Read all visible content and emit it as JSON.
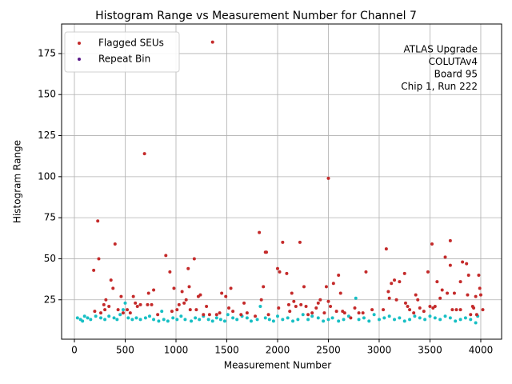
{
  "chart_data": {
    "type": "scatter",
    "title": "Histogram Range vs Measurement Number for Channel 7",
    "xlabel": "Measurement Number",
    "ylabel": "Histogram Range",
    "annotations": [
      "ATLAS Upgrade",
      "COLUTAv4",
      "Board 95",
      "Chip 1, Run 222"
    ],
    "xlim": [
      -126,
      4205
    ],
    "ylim": [
      1,
      193
    ],
    "xticks": [
      0,
      500,
      1000,
      1500,
      2000,
      2500,
      3000,
      3500,
      4000
    ],
    "yticks": [
      25,
      50,
      75,
      100,
      125,
      150,
      175
    ],
    "grid": true,
    "legend": "upper left",
    "series": [
      {
        "color": "#17bfc4",
        "x": [
          30,
          60,
          80,
          100,
          130,
          160,
          210,
          260,
          300,
          340,
          390,
          420,
          450,
          480,
          500,
          530,
          570,
          610,
          650,
          700,
          740,
          780,
          830,
          860,
          880,
          920,
          970,
          1010,
          1050,
          1090,
          1150,
          1190,
          1230,
          1270,
          1320,
          1360,
          1400,
          1440,
          1480,
          1510,
          1560,
          1600,
          1650,
          1700,
          1740,
          1800,
          1830,
          1880,
          1920,
          1960,
          2000,
          2050,
          2100,
          2150,
          2200,
          2250,
          2300,
          2340,
          2400,
          2450,
          2500,
          2540,
          2600,
          2650,
          2700,
          2770,
          2800,
          2850,
          2900,
          2950,
          3000,
          3050,
          3100,
          3150,
          3200,
          3250,
          3300,
          3350,
          3400,
          3450,
          3500,
          3550,
          3600,
          3650,
          3700,
          3750,
          3800,
          3850,
          3900,
          3950,
          3970
        ],
        "values": [
          14,
          13,
          12,
          15,
          14,
          13,
          15,
          14,
          13,
          15,
          14,
          13,
          16,
          19,
          23,
          14,
          13,
          14,
          13,
          14,
          15,
          13,
          12,
          18,
          13,
          12,
          14,
          13,
          15,
          13,
          12,
          14,
          13,
          15,
          13,
          12,
          14,
          13,
          12,
          16,
          14,
          13,
          15,
          14,
          12,
          13,
          21,
          14,
          13,
          12,
          15,
          13,
          14,
          12,
          13,
          16,
          13,
          15,
          14,
          12,
          13,
          14,
          12,
          13,
          15,
          26,
          13,
          14,
          12,
          16,
          13,
          14,
          15,
          13,
          14,
          12,
          13,
          15,
          14,
          13,
          15,
          14,
          13,
          15,
          14,
          12,
          13,
          14,
          13,
          11,
          15
        ]
      },
      {
        "name": "Flagged SEUs",
        "color": "#c42a2a",
        "x": [
          190,
          200,
          230,
          240,
          260,
          290,
          300,
          310,
          340,
          360,
          380,
          400,
          430,
          460,
          480,
          520,
          550,
          580,
          600,
          620,
          650,
          690,
          720,
          730,
          760,
          780,
          820,
          900,
          940,
          960,
          980,
          1010,
          1030,
          1060,
          1080,
          1100,
          1120,
          1130,
          1140,
          1180,
          1200,
          1220,
          1240,
          1270,
          1300,
          1330,
          1360,
          1400,
          1430,
          1450,
          1490,
          1520,
          1540,
          1560,
          1640,
          1670,
          1700,
          1780,
          1820,
          1840,
          1860,
          1880,
          1890,
          1910,
          2000,
          2010,
          2020,
          2050,
          2090,
          2110,
          2120,
          2140,
          2160,
          2180,
          2220,
          2230,
          2260,
          2280,
          2300,
          2340,
          2380,
          2400,
          2420,
          2460,
          2480,
          2500,
          2500,
          2520,
          2550,
          2580,
          2600,
          2620,
          2640,
          2660,
          2720,
          2760,
          2800,
          2840,
          2870,
          2930,
          3040,
          3070,
          3090,
          3100,
          3120,
          3150,
          3170,
          3200,
          3250,
          3260,
          3280,
          3300,
          3340,
          3360,
          3380,
          3400,
          3440,
          3480,
          3500,
          3520,
          3530,
          3550,
          3570,
          3600,
          3620,
          3650,
          3670,
          3700,
          3700,
          3720,
          3740,
          3760,
          3800,
          3800,
          3820,
          3860,
          3870,
          3880,
          3900,
          3920,
          3930,
          3950,
          3960,
          3980,
          3990,
          4000,
          4020
        ],
        "values": [
          43,
          18,
          73,
          50,
          17,
          22,
          19,
          25,
          21,
          37,
          32,
          59,
          19,
          27,
          17,
          19,
          17,
          27,
          23,
          21,
          22,
          114,
          22,
          29,
          22,
          31,
          16,
          52,
          42,
          18,
          32,
          19,
          22,
          30,
          23,
          25,
          44,
          33,
          19,
          50,
          19,
          27,
          28,
          16,
          21,
          16,
          182,
          16,
          17,
          29,
          27,
          20,
          32,
          18,
          16,
          23,
          17,
          15,
          66,
          25,
          33,
          54,
          54,
          16,
          44,
          20,
          42,
          60,
          41,
          22,
          18,
          29,
          24,
          21,
          60,
          22,
          33,
          21,
          16,
          17,
          20,
          23,
          25,
          17,
          33,
          99,
          24,
          21,
          35,
          18,
          40,
          29,
          18,
          17,
          14,
          20,
          17,
          17,
          42,
          19,
          19,
          56,
          30,
          26,
          35,
          37,
          25,
          36,
          41,
          23,
          21,
          19,
          17,
          28,
          25,
          20,
          18,
          42,
          21,
          59,
          20,
          21,
          36,
          26,
          31,
          51,
          29,
          46,
          61,
          19,
          29,
          19,
          19,
          36,
          48,
          47,
          28,
          40,
          16,
          21,
          20,
          27,
          16,
          40,
          32,
          28,
          19
        ]
      },
      {
        "name": "Repeat Bin",
        "color": "#5b1a8a",
        "x": [],
        "values": []
      }
    ]
  }
}
